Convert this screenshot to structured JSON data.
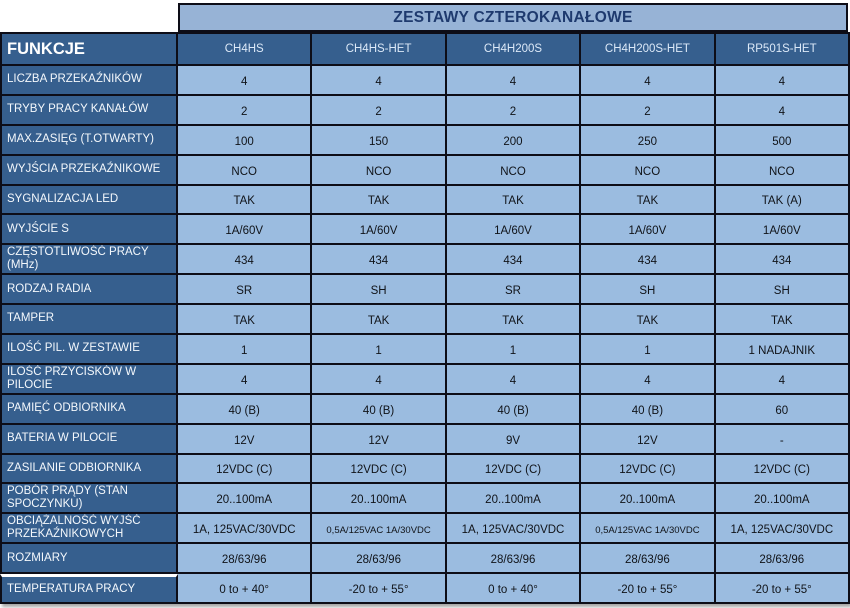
{
  "title": "ZESTAWY CZTEROKANAŁOWE",
  "table": {
    "corner_label": "FUNKCJE",
    "columns": [
      "CH4HS",
      "CH4HS-HET",
      "CH4H200S",
      "CH4H200S-HET",
      "RP501S-HET"
    ],
    "rows": [
      {
        "label": "LICZBA PRZEKAŹNIKÓW",
        "values": [
          "4",
          "4",
          "4",
          "4",
          "4"
        ]
      },
      {
        "label": "TRYBY PRACY KANAŁÓW",
        "values": [
          "2",
          "2",
          "2",
          "2",
          "4"
        ]
      },
      {
        "label": "MAX.ZASIĘG (T.OTWARTY)",
        "values": [
          "100",
          "150",
          "200",
          "250",
          "500"
        ]
      },
      {
        "label": "WYJŚCIA PRZEKAŹNIKOWE",
        "values": [
          "NCO",
          "NCO",
          "NCO",
          "NCO",
          "NCO"
        ]
      },
      {
        "label": "SYGNALIZACJA LED",
        "values": [
          "TAK",
          "TAK",
          "TAK",
          "TAK",
          "TAK (A)"
        ]
      },
      {
        "label": "WYJŚCIE S",
        "values": [
          "1A/60V",
          "1A/60V",
          "1A/60V",
          "1A/60V",
          "1A/60V"
        ]
      },
      {
        "label": "CZĘSTOTLIWOŚĆ PRACY (MHz)",
        "values": [
          "434",
          "434",
          "434",
          "434",
          "434"
        ]
      },
      {
        "label": "RODZAJ RADIA",
        "values": [
          "SR",
          "SH",
          "SR",
          "SH",
          "SH"
        ]
      },
      {
        "label": "TAMPER",
        "values": [
          "TAK",
          "TAK",
          "TAK",
          "TAK",
          "TAK"
        ]
      },
      {
        "label": "ILOŚĆ PIL. W ZESTAWIE",
        "values": [
          "1",
          "1",
          "1",
          "1",
          "1 NADAJNIK"
        ]
      },
      {
        "label": "ILOŚĆ PRZYCISKÓW W PILOCIE",
        "values": [
          "4",
          "4",
          "4",
          "4",
          "4"
        ]
      },
      {
        "label": "PAMIĘĆ ODBIORNIKA",
        "values": [
          "40 (B)",
          "40 (B)",
          "40 (B)",
          "40 (B)",
          "60"
        ]
      },
      {
        "label": "BATERIA W PILOCIE",
        "values": [
          "12V",
          "12V",
          "9V",
          "12V",
          "-"
        ]
      },
      {
        "label": "ZASILANIE ODBIORNIKA",
        "values": [
          "12VDC (C)",
          "12VDC (C)",
          "12VDC (C)",
          "12VDC (C)",
          "12VDC (C)"
        ]
      },
      {
        "label": "POBÓR PRĄDY (STAN SPOCZYNKU)",
        "values": [
          "20..100mA",
          "20..100mA",
          "20..100mA",
          "20..100mA",
          "20..100mA"
        ]
      },
      {
        "label": "OBCIĄŻALNOŚĆ WYJŚĆ PRZEKAŹNIKOWYCH",
        "values": [
          "1A, 125VAC/30VDC",
          "0,5A/125VAC 1A/30VDC",
          "1A, 125VAC/30VDC",
          "0,5A/125VAC 1A/30VDC",
          "1A, 125VAC/30VDC"
        ]
      },
      {
        "label": "ROZMIARY",
        "values": [
          "28/63/96",
          "28/63/96",
          "28/63/96",
          "28/63/96",
          "28/63/96"
        ]
      },
      {
        "label": "TEMPERATURA PRACY",
        "values": [
          "0 to + 40°",
          "-20 to + 55°",
          "0 to + 40°",
          "-20 to + 55°",
          "-20 to + 55°"
        ]
      }
    ]
  },
  "colors": {
    "header_bg": "#365F8E",
    "data_bg": "#9BBCE0",
    "title_bg": "#97B3D6",
    "title_text": "#1E3A6E",
    "border": "#0d0d17"
  }
}
